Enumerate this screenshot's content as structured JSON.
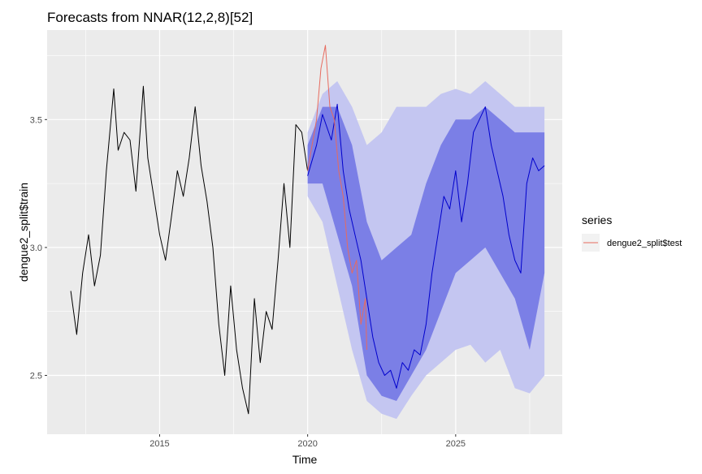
{
  "chart_data": {
    "type": "line",
    "title": "Forecasts from NNAR(12,2,8)[52]",
    "xlabel": "Time",
    "ylabel": "dengue2_split$train",
    "xlim": [
      2011.2,
      2028.6
    ],
    "ylim": [
      2.27,
      3.85
    ],
    "x_ticks": [
      2015,
      2020,
      2025
    ],
    "y_ticks": [
      2.5,
      3.0,
      3.5
    ],
    "grid": true,
    "legend": {
      "title": "series",
      "position": "right",
      "entries": [
        {
          "name": "dengue2_split$test",
          "color": "#e76b5f"
        }
      ]
    },
    "colors": {
      "train": "#000000",
      "test": "#e76b5f",
      "forecast_mean": "#0000cc",
      "interval_80": "#7b7fe6",
      "interval_95": "#c4c6f1",
      "panel_bg": "#ebebeb",
      "grid": "#ffffff"
    },
    "series": [
      {
        "key": "train",
        "x": [
          2012.0,
          2012.2,
          2012.4,
          2012.6,
          2012.8,
          2013.0,
          2013.2,
          2013.45,
          2013.6,
          2013.8,
          2014.0,
          2014.2,
          2014.45,
          2014.6,
          2014.8,
          2015.0,
          2015.2,
          2015.4,
          2015.6,
          2015.8,
          2016.0,
          2016.2,
          2016.4,
          2016.6,
          2016.8,
          2017.0,
          2017.2,
          2017.4,
          2017.6,
          2017.8,
          2018.0,
          2018.2,
          2018.4,
          2018.6,
          2018.8,
          2019.0,
          2019.2,
          2019.4,
          2019.6,
          2019.8,
          2020.0
        ],
        "values": [
          2.83,
          2.66,
          2.9,
          3.05,
          2.85,
          2.97,
          3.3,
          3.62,
          3.38,
          3.45,
          3.42,
          3.22,
          3.63,
          3.35,
          3.2,
          3.05,
          2.95,
          3.12,
          3.3,
          3.2,
          3.35,
          3.55,
          3.32,
          3.18,
          3.0,
          2.7,
          2.5,
          2.85,
          2.6,
          2.45,
          2.35,
          2.8,
          2.55,
          2.75,
          2.68,
          2.95,
          3.25,
          3.0,
          3.48,
          3.45,
          3.3
        ]
      },
      {
        "key": "test",
        "name": "dengue2_split$test",
        "x": [
          2020.0,
          2020.15,
          2020.3,
          2020.45,
          2020.6,
          2020.75,
          2020.9,
          2021.05,
          2021.2,
          2021.35,
          2021.5,
          2021.65,
          2021.8,
          2021.95,
          2022.0
        ],
        "values": [
          3.3,
          3.4,
          3.5,
          3.7,
          3.79,
          3.55,
          3.5,
          3.3,
          3.2,
          3.0,
          2.9,
          2.95,
          2.7,
          2.8,
          2.6
        ]
      },
      {
        "key": "forecast_mean",
        "x": [
          2020.0,
          2020.3,
          2020.5,
          2020.8,
          2021.0,
          2021.2,
          2021.4,
          2021.6,
          2021.8,
          2022.0,
          2022.2,
          2022.4,
          2022.6,
          2022.8,
          2023.0,
          2023.2,
          2023.4,
          2023.6,
          2023.8,
          2024.0,
          2024.2,
          2024.4,
          2024.6,
          2024.8,
          2025.0,
          2025.2,
          2025.4,
          2025.6,
          2025.8,
          2026.0,
          2026.2,
          2026.4,
          2026.6,
          2026.8,
          2027.0,
          2027.2,
          2027.4,
          2027.6,
          2027.8,
          2028.0
        ],
        "values": [
          3.28,
          3.4,
          3.52,
          3.42,
          3.56,
          3.3,
          3.15,
          3.05,
          2.95,
          2.8,
          2.65,
          2.55,
          2.5,
          2.52,
          2.45,
          2.55,
          2.52,
          2.6,
          2.58,
          2.7,
          2.9,
          3.05,
          3.2,
          3.15,
          3.3,
          3.1,
          3.25,
          3.45,
          3.5,
          3.55,
          3.4,
          3.3,
          3.2,
          3.05,
          2.95,
          2.9,
          3.25,
          3.35,
          3.3,
          3.32
        ]
      }
    ],
    "intervals": [
      {
        "level": "95",
        "x": [
          2020.0,
          2020.5,
          2021.0,
          2021.5,
          2022.0,
          2022.5,
          2023.0,
          2023.5,
          2024.0,
          2024.5,
          2025.0,
          2025.5,
          2026.0,
          2026.5,
          2027.0,
          2027.5,
          2028.0
        ],
        "lower": [
          3.2,
          3.1,
          2.85,
          2.6,
          2.4,
          2.35,
          2.33,
          2.42,
          2.5,
          2.55,
          2.6,
          2.62,
          2.55,
          2.6,
          2.45,
          2.43,
          2.5
        ],
        "upper": [
          3.45,
          3.6,
          3.65,
          3.55,
          3.4,
          3.45,
          3.55,
          3.55,
          3.55,
          3.6,
          3.62,
          3.6,
          3.65,
          3.6,
          3.55,
          3.55,
          3.55
        ]
      },
      {
        "level": "80",
        "x": [
          2020.0,
          2020.5,
          2021.0,
          2021.5,
          2022.0,
          2022.5,
          2023.0,
          2023.5,
          2024.0,
          2024.5,
          2025.0,
          2025.5,
          2026.0,
          2026.5,
          2027.0,
          2027.5,
          2028.0
        ],
        "lower": [
          3.25,
          3.25,
          3.05,
          2.85,
          2.5,
          2.42,
          2.4,
          2.5,
          2.6,
          2.75,
          2.9,
          2.95,
          3.0,
          2.9,
          2.8,
          2.6,
          2.9
        ],
        "upper": [
          3.4,
          3.55,
          3.55,
          3.4,
          3.1,
          2.95,
          3.0,
          3.05,
          3.25,
          3.4,
          3.5,
          3.5,
          3.55,
          3.5,
          3.45,
          3.45,
          3.45
        ]
      }
    ]
  }
}
